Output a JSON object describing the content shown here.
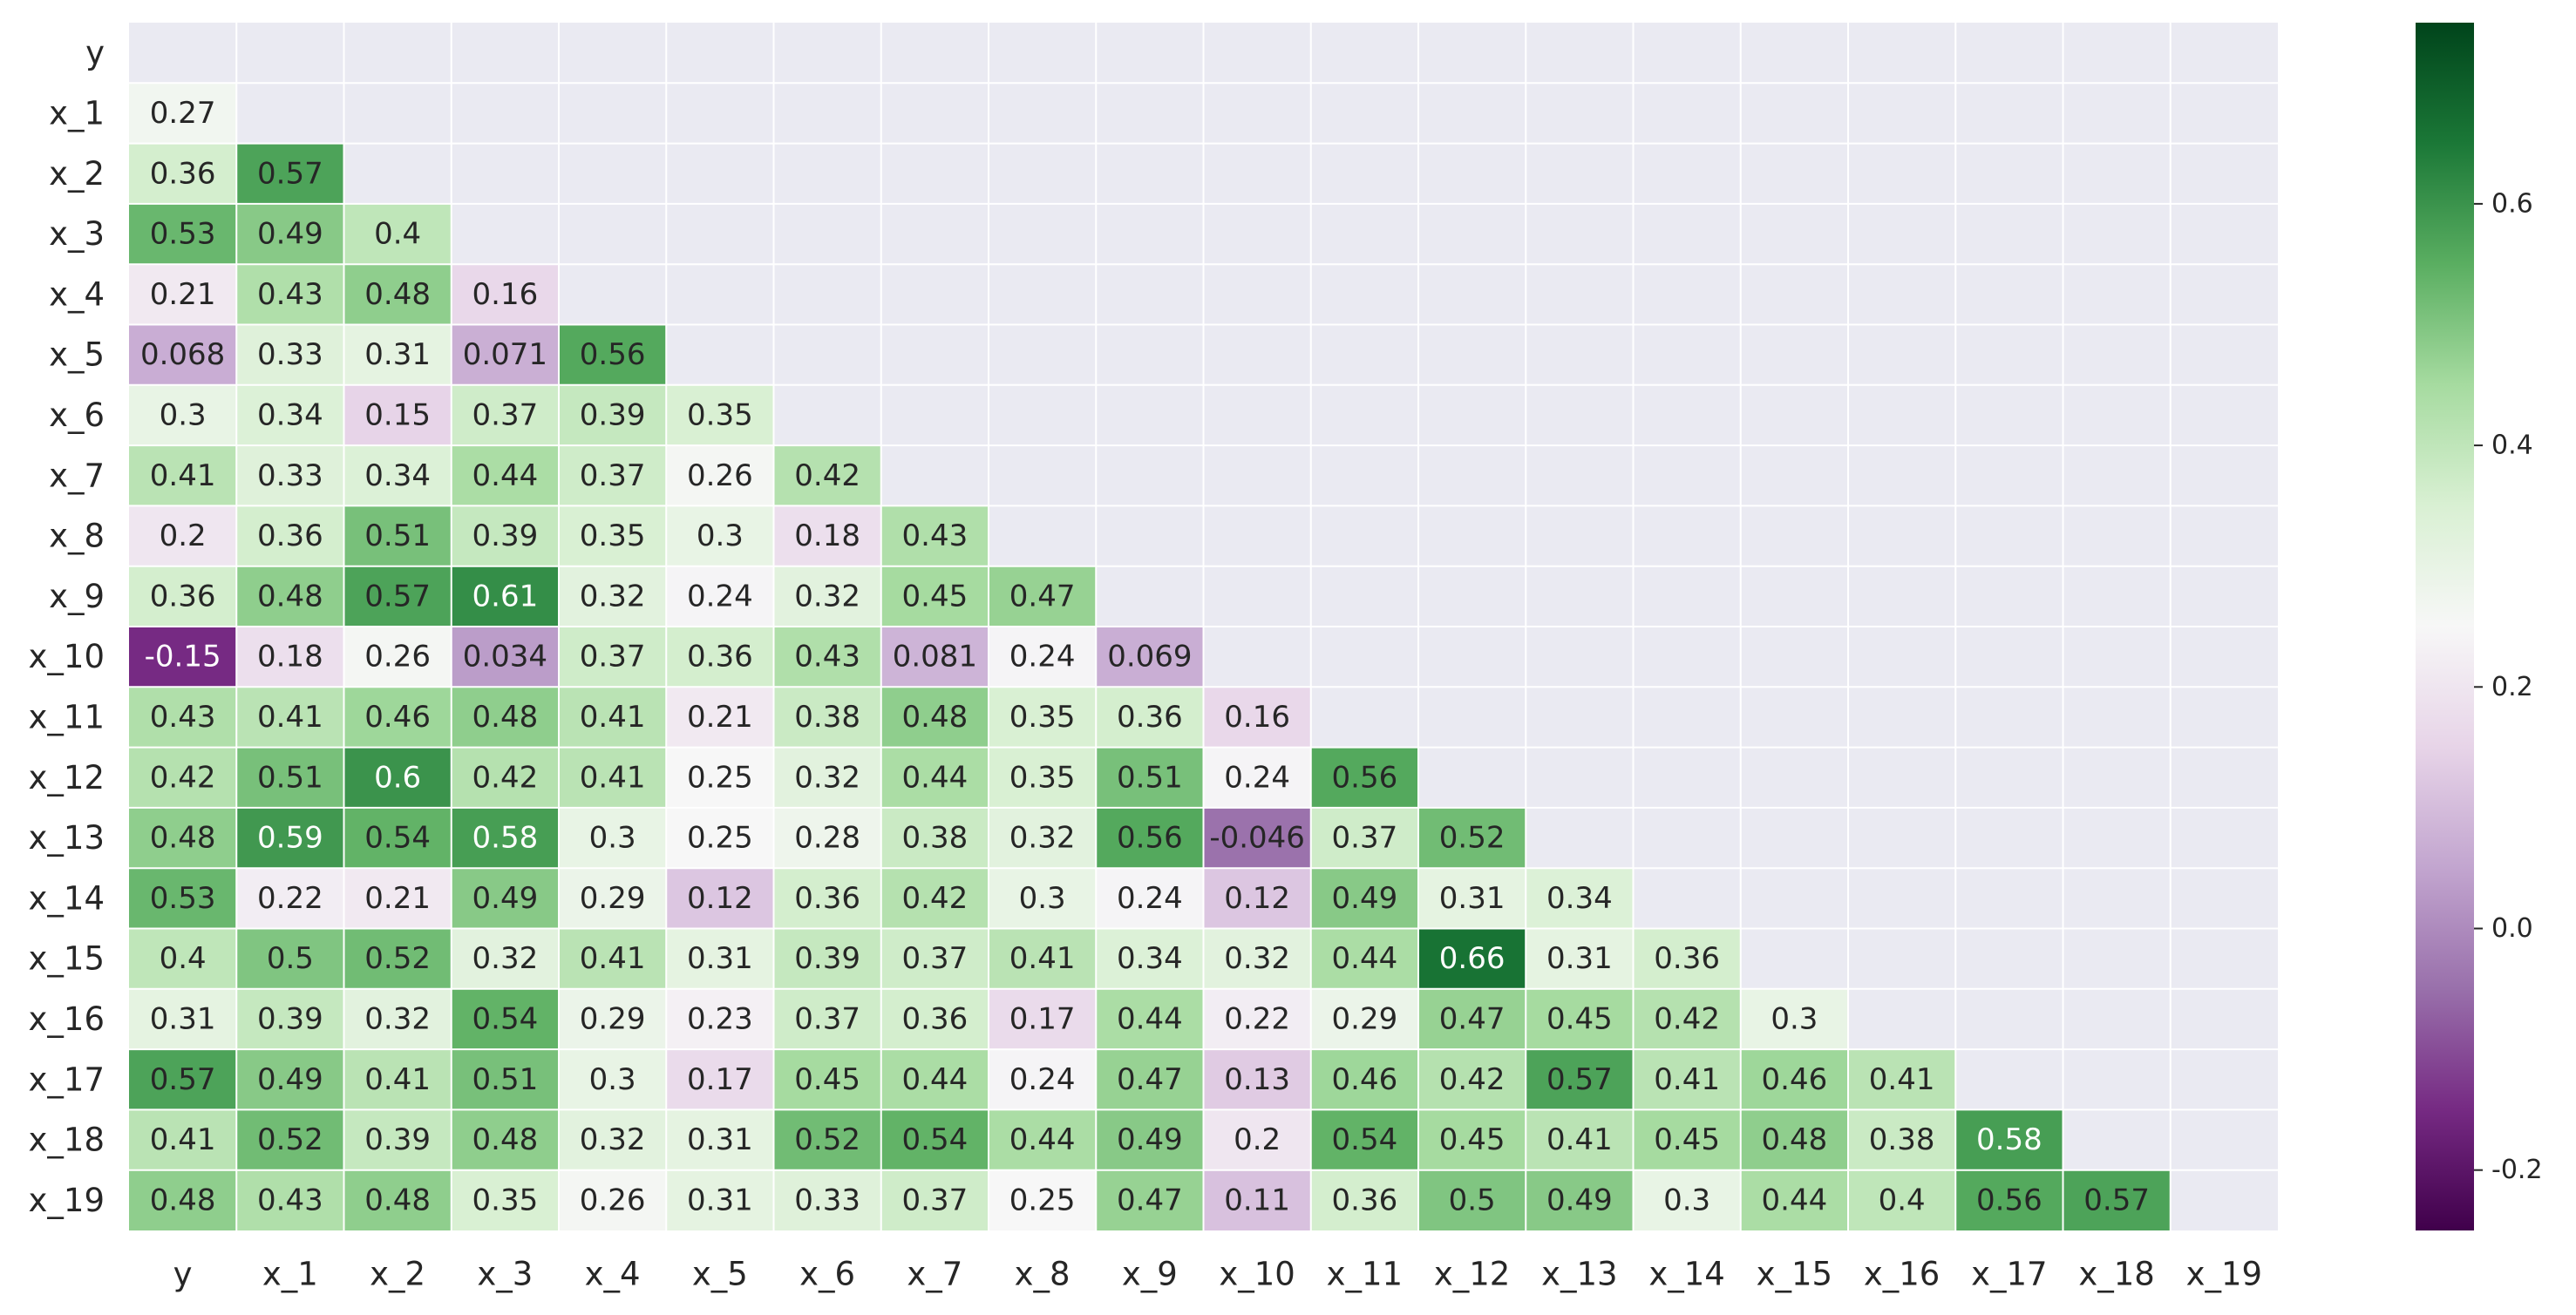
{
  "chart_data": {
    "type": "heatmap",
    "title": "",
    "xlabel": "",
    "ylabel": "",
    "variables": [
      "y",
      "x_1",
      "x_2",
      "x_3",
      "x_4",
      "x_5",
      "x_6",
      "x_7",
      "x_8",
      "x_9",
      "x_10",
      "x_11",
      "x_12",
      "x_13",
      "x_14",
      "x_15",
      "x_16",
      "x_17",
      "x_18",
      "x_19"
    ],
    "mask": "upper triangle including diagonal",
    "lower_triangle": [
      [],
      [
        "0.27"
      ],
      [
        "0.36",
        "0.57"
      ],
      [
        "0.53",
        "0.49",
        "0.4"
      ],
      [
        "0.21",
        "0.43",
        "0.48",
        "0.16"
      ],
      [
        "0.068",
        "0.33",
        "0.31",
        "0.071",
        "0.56"
      ],
      [
        "0.3",
        "0.34",
        "0.15",
        "0.37",
        "0.39",
        "0.35"
      ],
      [
        "0.41",
        "0.33",
        "0.34",
        "0.44",
        "0.37",
        "0.26",
        "0.42"
      ],
      [
        "0.2",
        "0.36",
        "0.51",
        "0.39",
        "0.35",
        "0.3",
        "0.18",
        "0.43"
      ],
      [
        "0.36",
        "0.48",
        "0.57",
        "0.61",
        "0.32",
        "0.24",
        "0.32",
        "0.45",
        "0.47"
      ],
      [
        "-0.15",
        "0.18",
        "0.26",
        "0.034",
        "0.37",
        "0.36",
        "0.43",
        "0.081",
        "0.24",
        "0.069"
      ],
      [
        "0.43",
        "0.41",
        "0.46",
        "0.48",
        "0.41",
        "0.21",
        "0.38",
        "0.48",
        "0.35",
        "0.36",
        "0.16"
      ],
      [
        "0.42",
        "0.51",
        "0.6",
        "0.42",
        "0.41",
        "0.25",
        "0.32",
        "0.44",
        "0.35",
        "0.51",
        "0.24",
        "0.56"
      ],
      [
        "0.48",
        "0.59",
        "0.54",
        "0.58",
        "0.3",
        "0.25",
        "0.28",
        "0.38",
        "0.32",
        "0.56",
        "-0.046",
        "0.37",
        "0.52"
      ],
      [
        "0.53",
        "0.22",
        "0.21",
        "0.49",
        "0.29",
        "0.12",
        "0.36",
        "0.42",
        "0.3",
        "0.24",
        "0.12",
        "0.49",
        "0.31",
        "0.34"
      ],
      [
        "0.4",
        "0.5",
        "0.52",
        "0.32",
        "0.41",
        "0.31",
        "0.39",
        "0.37",
        "0.41",
        "0.34",
        "0.32",
        "0.44",
        "0.66",
        "0.31",
        "0.36"
      ],
      [
        "0.31",
        "0.39",
        "0.32",
        "0.54",
        "0.29",
        "0.23",
        "0.37",
        "0.36",
        "0.17",
        "0.44",
        "0.22",
        "0.29",
        "0.47",
        "0.45",
        "0.42",
        "0.3"
      ],
      [
        "0.57",
        "0.49",
        "0.41",
        "0.51",
        "0.3",
        "0.17",
        "0.45",
        "0.44",
        "0.24",
        "0.47",
        "0.13",
        "0.46",
        "0.42",
        "0.57",
        "0.41",
        "0.46",
        "0.41"
      ],
      [
        "0.41",
        "0.52",
        "0.39",
        "0.48",
        "0.32",
        "0.31",
        "0.52",
        "0.54",
        "0.44",
        "0.49",
        "0.2",
        "0.54",
        "0.45",
        "0.41",
        "0.45",
        "0.48",
        "0.38",
        "0.58"
      ],
      [
        "0.48",
        "0.43",
        "0.48",
        "0.35",
        "0.26",
        "0.31",
        "0.33",
        "0.37",
        "0.25",
        "0.47",
        "0.11",
        "0.36",
        "0.5",
        "0.49",
        "0.3",
        "0.44",
        "0.4",
        "0.56",
        "0.57"
      ]
    ],
    "colorbar": {
      "cmap": "PRGn",
      "vmin": -0.25,
      "vmax": 0.75,
      "center": 0.25,
      "ticks": [
        "-0.2",
        "0.0",
        "0.2",
        "0.4",
        "0.6"
      ]
    },
    "colors": {
      "mask_background": "#eaeaf2",
      "grid_line": "#ffffff",
      "text_dark": "#262626",
      "text_light": "#ffffff"
    }
  }
}
